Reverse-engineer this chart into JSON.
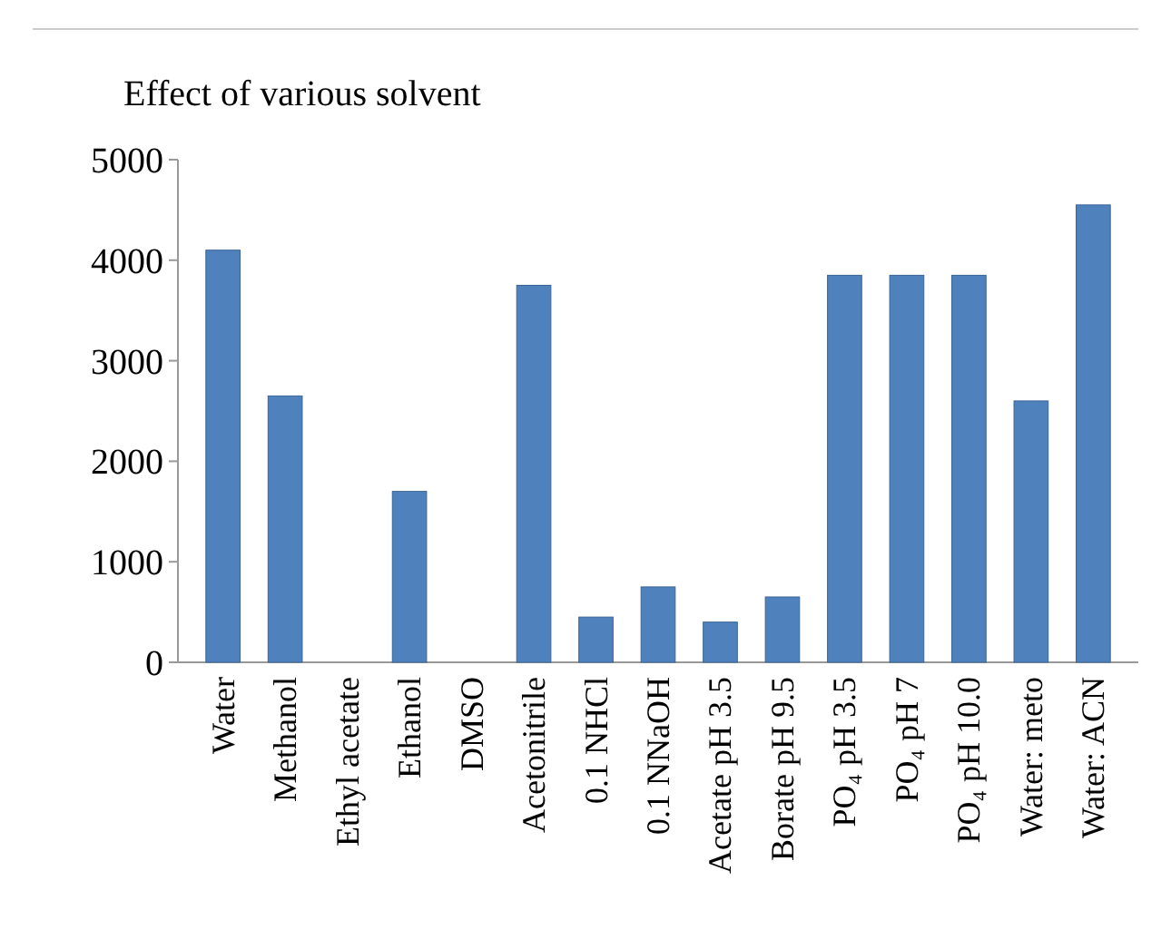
{
  "chart_data": {
    "type": "bar",
    "title": "Effect of various solvent",
    "categories": [
      "Water",
      "Methanol",
      "Ethyl acetate",
      "Ethanol",
      "DMSO",
      "Acetonitrile",
      "0.1 NHCl",
      "0.1 NNaOH",
      "Acetate pH 3.5",
      "Borate pH 9.5",
      "PO₄ pH 3.5",
      "PO₄ pH 7",
      "PO₄ pH 10.0",
      "Water: meto",
      "Water: ACN"
    ],
    "values": [
      4100,
      2650,
      0,
      1700,
      0,
      3750,
      450,
      750,
      400,
      650,
      3850,
      3850,
      3850,
      2600,
      4550
    ],
    "color": "#4f81bd",
    "ylim": [
      0,
      5000
    ],
    "yticks": [
      0,
      1000,
      2000,
      3000,
      4000,
      5000
    ],
    "grid": false
  }
}
